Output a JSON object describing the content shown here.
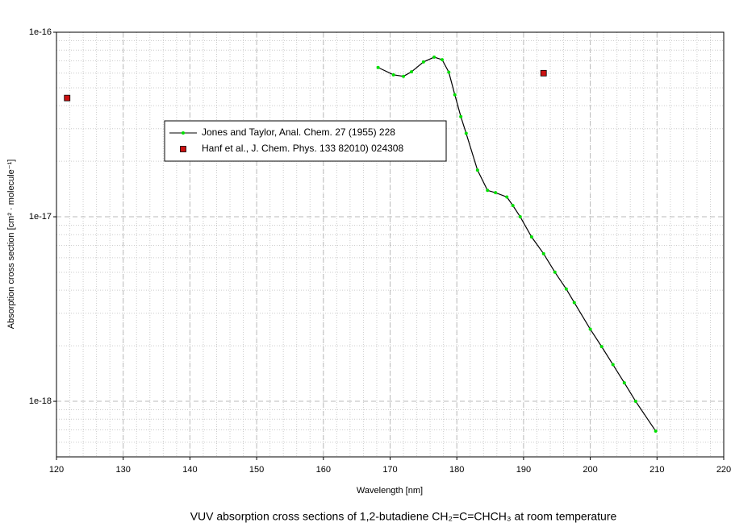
{
  "chart_data": {
    "type": "scatter-line",
    "title": "VUV absorption cross sections of 1,2-butadiene CH₂=C=CHCH₃ at room temperature",
    "x_label": "Wavelength [nm]",
    "y_label": "Absorption cross section [cm² · molecule⁻¹]",
    "xlim": [
      120,
      220
    ],
    "xticks": [
      120,
      130,
      140,
      150,
      160,
      170,
      180,
      190,
      200,
      210,
      220
    ],
    "ylim": [
      5e-19,
      1e-16
    ],
    "log_y": true,
    "yticks": [
      {
        "value": 1e-18,
        "label": "1e-18"
      },
      {
        "value": 1e-17,
        "label": "1e-17"
      },
      {
        "value": 1e-16,
        "label": "1e-16"
      }
    ],
    "grid": true,
    "minor_grid": true,
    "legend_position": "upper left",
    "series": [
      {
        "name": "Jones and Taylor, Anal. Chem. 27 (1955) 228",
        "color": "#00e000",
        "line_color": "#000000",
        "line": true,
        "x": [
          168.2,
          170.5,
          172,
          173.2,
          175,
          176.6,
          177.8,
          178.8,
          179.7,
          180.6,
          181.4,
          183.1,
          184.6,
          185.8,
          187.5,
          188.4,
          189.5,
          191.2,
          193,
          194.7,
          196.4,
          197.6,
          200,
          201.7,
          203.4,
          205.1,
          206.8,
          209.8
        ],
        "values": [
          6.44e-17,
          5.88e-17,
          5.77e-17,
          6.1e-17,
          6.9e-17,
          7.33e-17,
          7.1e-17,
          6.07e-17,
          4.58e-17,
          3.49e-17,
          2.83e-17,
          1.79e-17,
          1.39e-17,
          1.35e-17,
          1.28e-17,
          1.15e-17,
          1e-17,
          7.78e-18,
          6.31e-18,
          5.01e-18,
          4.06e-18,
          3.43e-18,
          2.46e-18,
          1.98e-18,
          1.58e-18,
          1.26e-18,
          1e-18,
          6.9e-19
        ]
      },
      {
        "name": "Hanf et al.,  J. Chem. Phys. 133 82010) 024308",
        "color": "#cc1111",
        "line": false,
        "x": [
          121.6,
          193
        ],
        "values": [
          4.4e-17,
          6e-17
        ]
      }
    ]
  }
}
